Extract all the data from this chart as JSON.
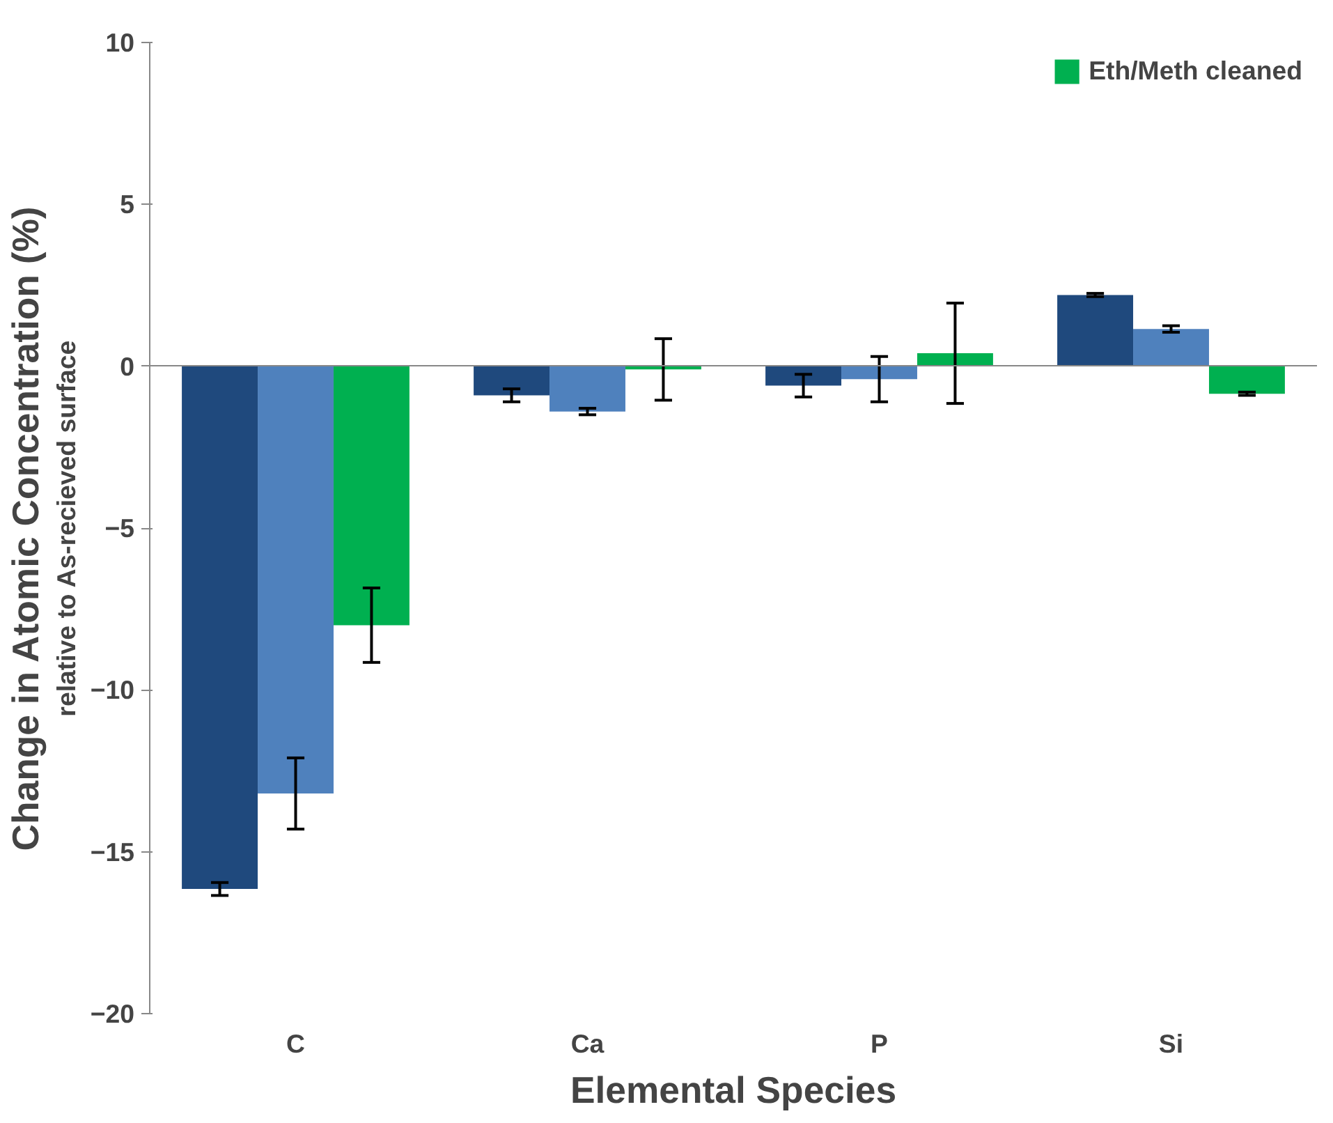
{
  "chart_data": {
    "type": "bar",
    "xlabel": "Elemental Species",
    "ylabel": "Change in Atomic Concentration (%)",
    "annotations": [
      "relative to As-recieved surface"
    ],
    "categories": [
      "C",
      "Ca",
      "P",
      "Si"
    ],
    "series": [
      {
        "color": "#1f497d",
        "values": [
          -16.15,
          -0.9,
          -0.6,
          2.2
        ],
        "errors": [
          0.2,
          0.2,
          0.35,
          0.05
        ]
      },
      {
        "color": "#4f81bd",
        "values": [
          -13.2,
          -1.4,
          -0.4,
          1.15
        ],
        "errors": [
          1.1,
          0.1,
          0.7,
          0.1
        ]
      },
      {
        "name": "Eth/Meth cleaned",
        "color": "#00b050",
        "values": [
          -8.0,
          -0.1,
          0.4,
          -0.85
        ],
        "errors": [
          1.15,
          0.95,
          1.55,
          0.05
        ]
      }
    ],
    "ylim": [
      -20,
      10
    ],
    "yticks": [
      -20,
      -15,
      -10,
      -5,
      0,
      5,
      10
    ],
    "legend": "top right"
  }
}
